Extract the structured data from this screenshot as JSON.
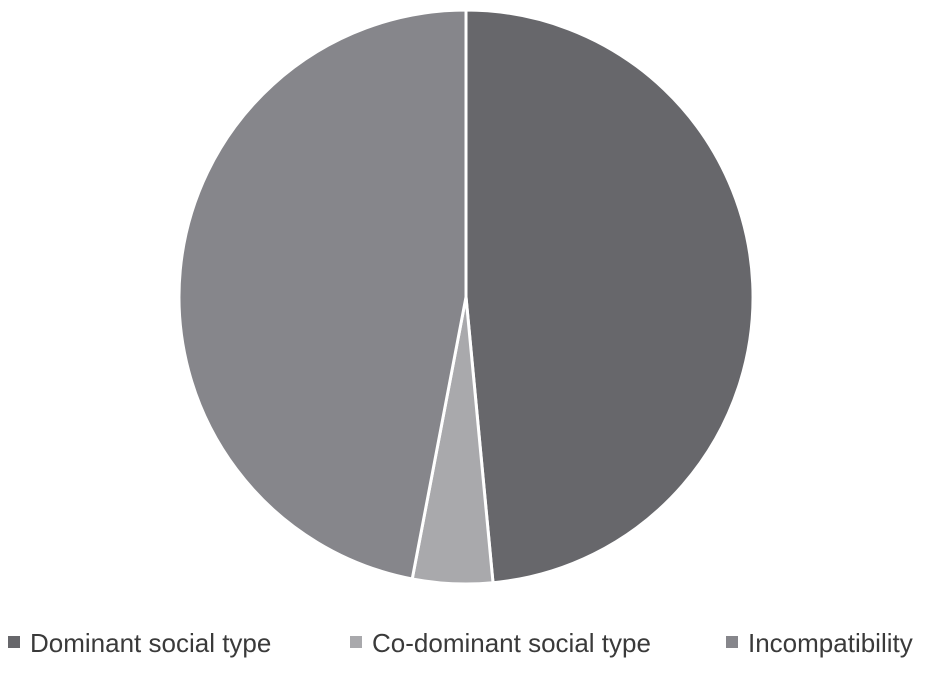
{
  "chart_data": {
    "type": "pie",
    "title": "",
    "legend_position": "bottom",
    "slices": [
      {
        "label": "Dominant social type",
        "value": 48.5,
        "color": "#67676b"
      },
      {
        "label": "Co-dominant social type",
        "value": 4.5,
        "color": "#a9a9ac"
      },
      {
        "label": "Incompatibility",
        "value": 47.0,
        "color": "#86868b"
      }
    ]
  }
}
